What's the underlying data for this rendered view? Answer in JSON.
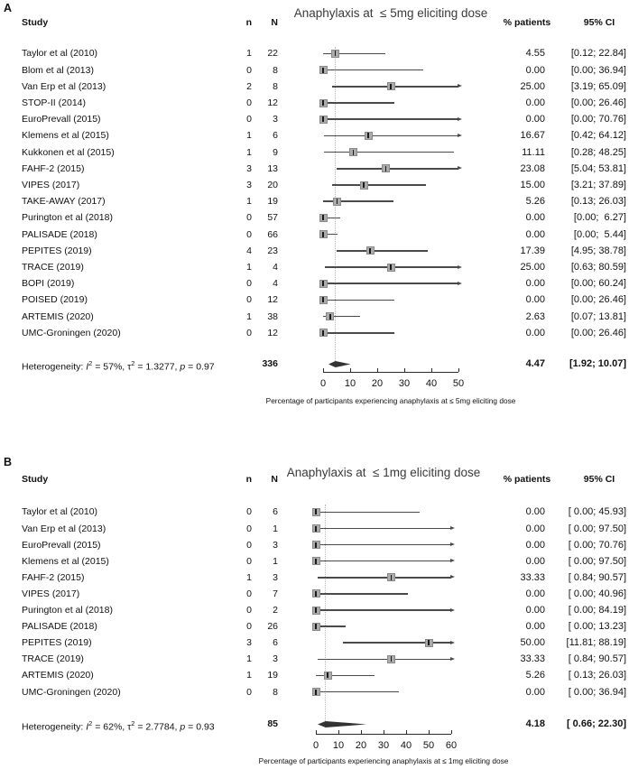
{
  "colors": {
    "ci_line": "#4a4a4a",
    "square_fill": "#ababab",
    "square_border": "#8a8a8a",
    "diamond": "#333333",
    "dotted_line": "#b3b3b3",
    "axis": "#2b2b2b",
    "text": "#111111",
    "title_text": "#3a3a3a"
  },
  "chart_data": [
    {
      "panel": "A",
      "type": "forest",
      "title": "Anaphylaxis at  ≤ 5mg eliciting dose",
      "columns": {
        "study": "Study",
        "n": "n",
        "N": "N",
        "pct": "% patients",
        "ci": "95% CI"
      },
      "axis": {
        "min": 0,
        "max": 50,
        "ticks": [
          0,
          10,
          20,
          30,
          40,
          50
        ],
        "label": "Percentage of participants experiencing anaphylaxis at ≤ 5mg eliciting dose"
      },
      "rows": [
        {
          "study": "Taylor et al (2010)",
          "n": "1",
          "N": "22",
          "pct": "4.55",
          "est": 4.55,
          "lo": 0.12,
          "hi": 22.84,
          "ci": "[0.12; 22.84]"
        },
        {
          "study": "Blom et al (2013)",
          "n": "0",
          "N": "8",
          "pct": "0.00",
          "est": 0.0,
          "lo": 0.0,
          "hi": 36.94,
          "ci": "[0.00; 36.94]"
        },
        {
          "study": "Van Erp et al (2013)",
          "n": "2",
          "N": "8",
          "pct": "25.00",
          "est": 25.0,
          "lo": 3.19,
          "hi": 65.09,
          "ci": "[3.19; 65.09]"
        },
        {
          "study": "STOP-II (2014)",
          "n": "0",
          "N": "12",
          "pct": "0.00",
          "est": 0.0,
          "lo": 0.0,
          "hi": 26.46,
          "ci": "[0.00; 26.46]"
        },
        {
          "study": "EuroPrevall (2015)",
          "n": "0",
          "N": "3",
          "pct": "0.00",
          "est": 0.0,
          "lo": 0.0,
          "hi": 70.76,
          "ci": "[0.00; 70.76]"
        },
        {
          "study": "Klemens et al (2015)",
          "n": "1",
          "N": "6",
          "pct": "16.67",
          "est": 16.67,
          "lo": 0.42,
          "hi": 64.12,
          "ci": "[0.42; 64.12]"
        },
        {
          "study": "Kukkonen et al (2015)",
          "n": "1",
          "N": "9",
          "pct": "11.11",
          "est": 11.11,
          "lo": 0.28,
          "hi": 48.25,
          "ci": "[0.28; 48.25]"
        },
        {
          "study": "FAHF-2 (2015)",
          "n": "3",
          "N": "13",
          "pct": "23.08",
          "est": 23.08,
          "lo": 5.04,
          "hi": 53.81,
          "ci": "[5.04; 53.81]"
        },
        {
          "study": "VIPES (2017)",
          "n": "3",
          "N": "20",
          "pct": "15.00",
          "est": 15.0,
          "lo": 3.21,
          "hi": 37.89,
          "ci": "[3.21; 37.89]"
        },
        {
          "study": "TAKE-AWAY (2017)",
          "n": "1",
          "N": "19",
          "pct": "5.26",
          "est": 5.26,
          "lo": 0.13,
          "hi": 26.03,
          "ci": "[0.13; 26.03]"
        },
        {
          "study": "Purington et al (2018)",
          "n": "0",
          "N": "57",
          "pct": "0.00",
          "est": 0.0,
          "lo": 0.0,
          "hi": 6.27,
          "ci": "[0.00;  6.27]"
        },
        {
          "study": "PALISADE (2018)",
          "n": "0",
          "N": "66",
          "pct": "0.00",
          "est": 0.0,
          "lo": 0.0,
          "hi": 5.44,
          "ci": "[0.00;  5.44]"
        },
        {
          "study": "PEPITES (2019)",
          "n": "4",
          "N": "23",
          "pct": "17.39",
          "est": 17.39,
          "lo": 4.95,
          "hi": 38.78,
          "ci": "[4.95; 38.78]"
        },
        {
          "study": "TRACE (2019)",
          "n": "1",
          "N": "4",
          "pct": "25.00",
          "est": 25.0,
          "lo": 0.63,
          "hi": 80.59,
          "ci": "[0.63; 80.59]"
        },
        {
          "study": "BOPI (2019)",
          "n": "0",
          "N": "4",
          "pct": "0.00",
          "est": 0.0,
          "lo": 0.0,
          "hi": 60.24,
          "ci": "[0.00; 60.24]"
        },
        {
          "study": "POISED (2019)",
          "n": "0",
          "N": "12",
          "pct": "0.00",
          "est": 0.0,
          "lo": 0.0,
          "hi": 26.46,
          "ci": "[0.00; 26.46]"
        },
        {
          "study": "ARTEMIS (2020)",
          "n": "1",
          "N": "38",
          "pct": "2.63",
          "est": 2.63,
          "lo": 0.07,
          "hi": 13.81,
          "ci": "[0.07; 13.81]"
        },
        {
          "study": "UMC-Groningen (2020)",
          "n": "0",
          "N": "12",
          "pct": "0.00",
          "est": 0.0,
          "lo": 0.0,
          "hi": 26.46,
          "ci": "[0.00; 26.46]"
        }
      ],
      "heterogeneity": [
        "Heterogeneity: ",
        "I",
        "2",
        " = 57%, ",
        "τ",
        "2",
        " = 1.3277, ",
        "p",
        " = 0.97"
      ],
      "summary": {
        "N": "336",
        "pct": "4.47",
        "ci": "[1.92; 10.07]",
        "est": 4.47,
        "lo": 1.92,
        "hi": 10.07
      }
    },
    {
      "panel": "B",
      "type": "forest",
      "title": "Anaphylaxis at  ≤ 1mg eliciting dose",
      "columns": {
        "study": "Study",
        "n": "n",
        "N": "N",
        "pct": "% patients",
        "ci": "95% CI"
      },
      "axis": {
        "min": 0,
        "max": 60,
        "ticks": [
          0,
          10,
          20,
          30,
          40,
          50,
          60
        ],
        "label": "Percentage of participants experiencing anaphylaxis at ≤ 1mg eliciting dose"
      },
      "rows": [
        {
          "study": "Taylor et al (2010)",
          "n": "0",
          "N": "6",
          "pct": "0.00",
          "est": 0.0,
          "lo": 0.0,
          "hi": 45.93,
          "ci": "[ 0.00; 45.93]"
        },
        {
          "study": "Van Erp et al (2013)",
          "n": "0",
          "N": "1",
          "pct": "0.00",
          "est": 0.0,
          "lo": 0.0,
          "hi": 97.5,
          "ci": "[ 0.00; 97.50]"
        },
        {
          "study": "EuroPrevall (2015)",
          "n": "0",
          "N": "3",
          "pct": "0.00",
          "est": 0.0,
          "lo": 0.0,
          "hi": 70.76,
          "ci": "[ 0.00; 70.76]"
        },
        {
          "study": "Klemens et al (2015)",
          "n": "0",
          "N": "1",
          "pct": "0.00",
          "est": 0.0,
          "lo": 0.0,
          "hi": 97.5,
          "ci": "[ 0.00; 97.50]"
        },
        {
          "study": "FAHF-2 (2015)",
          "n": "1",
          "N": "3",
          "pct": "33.33",
          "est": 33.33,
          "lo": 0.84,
          "hi": 90.57,
          "ci": "[ 0.84; 90.57]"
        },
        {
          "study": "VIPES (2017)",
          "n": "0",
          "N": "7",
          "pct": "0.00",
          "est": 0.0,
          "lo": 0.0,
          "hi": 40.96,
          "ci": "[ 0.00; 40.96]"
        },
        {
          "study": "Purington et al (2018)",
          "n": "0",
          "N": "2",
          "pct": "0.00",
          "est": 0.0,
          "lo": 0.0,
          "hi": 84.19,
          "ci": "[ 0.00; 84.19]"
        },
        {
          "study": "PALISADE (2018)",
          "n": "0",
          "N": "26",
          "pct": "0.00",
          "est": 0.0,
          "lo": 0.0,
          "hi": 13.23,
          "ci": "[ 0.00; 13.23]"
        },
        {
          "study": "PEPITES (2019)",
          "n": "3",
          "N": "6",
          "pct": "50.00",
          "est": 50.0,
          "lo": 11.81,
          "hi": 88.19,
          "ci": "[11.81; 88.19]"
        },
        {
          "study": "TRACE (2019)",
          "n": "1",
          "N": "3",
          "pct": "33.33",
          "est": 33.33,
          "lo": 0.84,
          "hi": 90.57,
          "ci": "[ 0.84; 90.57]"
        },
        {
          "study": "ARTEMIS (2020)",
          "n": "1",
          "N": "19",
          "pct": "5.26",
          "est": 5.26,
          "lo": 0.13,
          "hi": 26.03,
          "ci": "[ 0.13; 26.03]"
        },
        {
          "study": "UMC-Groningen (2020)",
          "n": "0",
          "N": "8",
          "pct": "0.00",
          "est": 0.0,
          "lo": 0.0,
          "hi": 36.94,
          "ci": "[ 0.00; 36.94]"
        }
      ],
      "heterogeneity": [
        "Heterogeneity: ",
        "I",
        "2",
        " = 62%, ",
        "τ",
        "2",
        " = 2.7784, ",
        "p",
        " = 0.93"
      ],
      "summary": {
        "N": "85",
        "pct": "4.18",
        "ci": "[ 0.66; 22.30]",
        "est": 4.18,
        "lo": 0.66,
        "hi": 22.3
      }
    }
  ]
}
